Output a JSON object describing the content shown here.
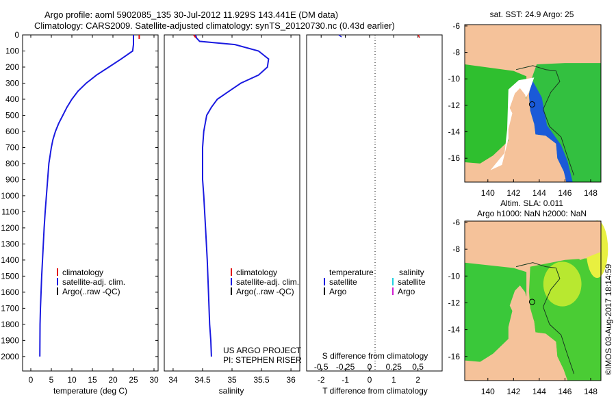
{
  "header": {
    "line1": "Argo profile: aoml 5902085_135 30-Jul-2012 11.929S 143.441E (DM data)",
    "line2": "Climatology: CARS2009. Satellite-adjusted climatology: synTS_20120730.nc (0.43d earlier)"
  },
  "watermark": "©IMOS 03-Aug-2017 18:14:59",
  "colors": {
    "climatology": "#e01010",
    "satellite": "#1a1ae0",
    "argo": "#000000",
    "sat_salinity": "#20d0e0",
    "argo_salinity": "#d020d0",
    "land": "#f5c29a",
    "ocean": "#2fbf2f"
  },
  "depth_ticks": [
    0,
    100,
    200,
    300,
    400,
    500,
    600,
    700,
    800,
    900,
    1000,
    1100,
    1200,
    1300,
    1400,
    1500,
    1600,
    1700,
    1800,
    1900,
    2000
  ],
  "chart_data": [
    {
      "type": "line",
      "xlabel": "temperature (deg C)",
      "xlim": [
        -2,
        31
      ],
      "ylim": [
        2090,
        0
      ],
      "xticks": [
        0,
        5,
        10,
        15,
        20,
        25,
        30
      ],
      "legend": [
        "climatology",
        "satellite-adj. clim.",
        "Argo(..raw -QC)"
      ],
      "series": [
        {
          "name": "satellite-adj. clim.",
          "x": [
            25,
            25,
            24.8,
            22,
            19,
            16,
            13.5,
            11.5,
            10,
            8.8,
            7.8,
            6.8,
            6,
            5.4,
            5,
            4.7,
            4.4,
            4.1,
            3.8,
            3.5,
            3.25,
            3.05,
            2.85,
            2.65,
            2.5,
            2.35,
            2.25,
            2.2
          ],
          "depth": [
            0,
            60,
            100,
            150,
            200,
            250,
            300,
            350,
            400,
            450,
            500,
            550,
            600,
            650,
            700,
            750,
            800,
            900,
            1000,
            1100,
            1200,
            1300,
            1400,
            1500,
            1600,
            1700,
            1800,
            2000
          ]
        },
        {
          "name": "climatology",
          "x": [
            26.4,
            26.4
          ],
          "depth": [
            0,
            25
          ]
        }
      ]
    },
    {
      "type": "line",
      "xlabel": "salinity",
      "xlim": [
        33.85,
        36.15
      ],
      "ylim": [
        2090,
        0
      ],
      "xticks": [
        34,
        34.5,
        35,
        35.5,
        36
      ],
      "xticklabels": [
        "34",
        "34.5",
        "35",
        "35.5",
        "36"
      ],
      "legend": [
        "climatology",
        "satellite-adj. clim.",
        "Argo(..raw -QC)"
      ],
      "annotation": [
        "US ARGO PROJECT",
        "PI: STEPHEN RISER"
      ],
      "series": [
        {
          "name": "satellite-adj. clim.",
          "x": [
            34.38,
            34.4,
            34.45,
            35.05,
            35.45,
            35.62,
            35.6,
            35.45,
            35.15,
            34.95,
            34.75,
            34.65,
            34.57,
            34.52,
            34.5,
            34.5,
            34.5,
            34.52,
            34.55,
            34.58,
            34.6,
            34.62,
            34.64,
            34.65
          ],
          "depth": [
            0,
            20,
            40,
            60,
            100,
            150,
            200,
            250,
            300,
            350,
            400,
            450,
            500,
            600,
            700,
            800,
            900,
            1000,
            1200,
            1400,
            1600,
            1800,
            1900,
            2000
          ]
        },
        {
          "name": "climatology",
          "x": [
            34.35
          ],
          "depth": [
            0
          ]
        }
      ]
    },
    {
      "type": "line",
      "xlabel": "T difference from climatology",
      "x2label": "S difference from climatology",
      "xlim": [
        -2.6,
        3.0
      ],
      "ylim": [
        2090,
        0
      ],
      "xticks": [
        -2,
        -1,
        0,
        1,
        2
      ],
      "x2ticks": [
        "-0.5",
        "-0.25",
        "0",
        "0.25",
        "0.5"
      ],
      "legend": [
        "temperature",
        "satellite",
        "Argo",
        "salinity",
        "satellite",
        "Argo"
      ],
      "series": []
    },
    {
      "type": "heatmap",
      "title": "sat. SST: 24.9 Argo: 25",
      "xticks": [
        140,
        142,
        144,
        146,
        148
      ],
      "yticks": [
        -6,
        -8,
        -10,
        -12,
        -14,
        -16
      ],
      "xlim": [
        138.2,
        148.8
      ],
      "ylim": [
        -17.8,
        -5.9
      ]
    },
    {
      "type": "heatmap",
      "title_line1": "Altim. SLA: 0.011",
      "title_line2": "Argo h1000: NaN h2000: NaN",
      "xticks": [
        140,
        142,
        144,
        146,
        148
      ],
      "yticks": [
        -6,
        -8,
        -10,
        -12,
        -14,
        -16
      ],
      "xlim": [
        138.2,
        148.8
      ],
      "ylim": [
        -17.8,
        -5.9
      ]
    }
  ]
}
